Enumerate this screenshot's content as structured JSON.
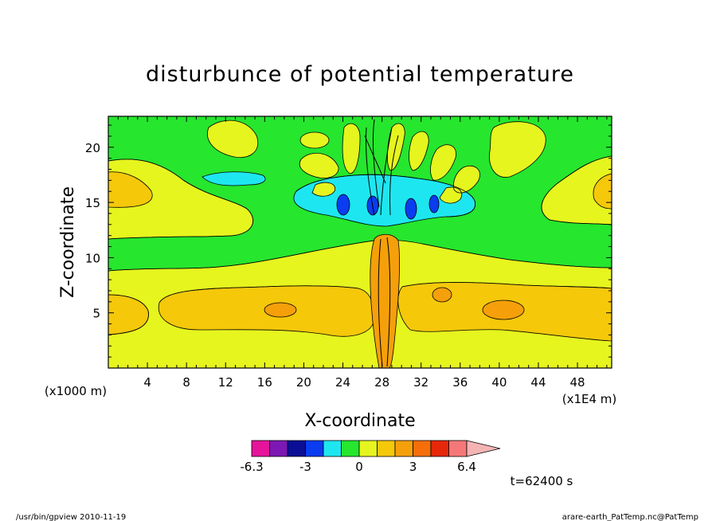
{
  "chart_data": {
    "type": "heatmap",
    "title": "disturbunce of potential temperature",
    "xlabel": "X-coordinate",
    "ylabel": "Z-coordinate",
    "x_unit_left": "(x1000 m)",
    "x_unit_right": "(x1E4 m)",
    "xlim": [
      0,
      51.5
    ],
    "ylim": [
      0,
      22.8
    ],
    "x_ticks": [
      4,
      8,
      12,
      16,
      20,
      24,
      28,
      32,
      36,
      40,
      44,
      48
    ],
    "y_ticks": [
      5,
      10,
      15,
      20
    ],
    "colorbar": {
      "labels": [
        "-6.3",
        "-3",
        "0",
        "3",
        "6.4"
      ],
      "colors": [
        "#e6149b",
        "#7d18b4",
        "#0a0f96",
        "#0a3cf0",
        "#1ee6f0",
        "#26e62e",
        "#e6f51e",
        "#f5c80a",
        "#f5a00a",
        "#f56e0a",
        "#e6280a",
        "#f57878",
        "#f5b4b4"
      ]
    },
    "field_colors": {
      "background": "#26e62e",
      "weak_positive": "#e6f51e",
      "positive": "#f5c80a",
      "strong_positive": "#f5a00a",
      "weak_negative": "#1ee6f0",
      "negative": "#0a3cf0"
    }
  },
  "annotations": {
    "time_label": "t=62400 s",
    "footer_left": "/usr/bin/gpview   2010-11-19",
    "footer_right": "arare-earth_PatTemp.nc@PatTemp"
  }
}
